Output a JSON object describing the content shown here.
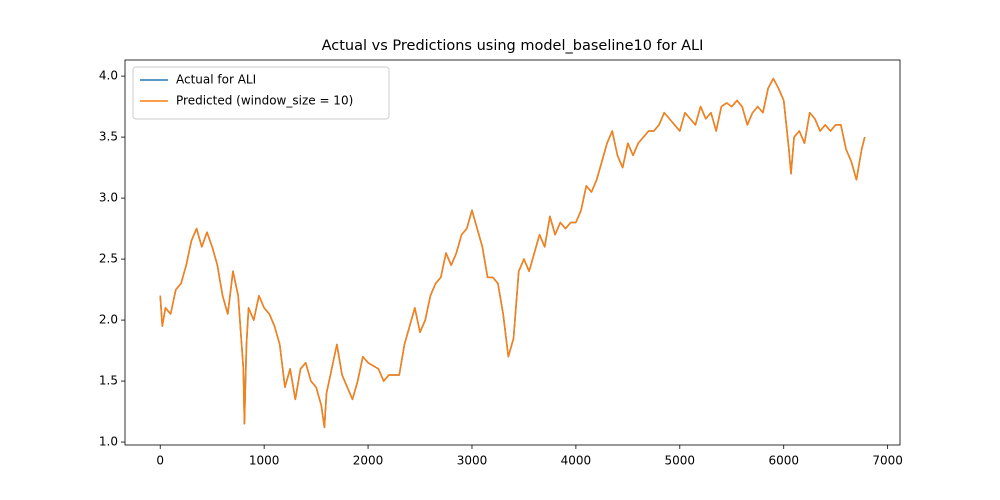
{
  "chart_data": {
    "type": "line",
    "title": "Actual vs Predictions using model_baseline10 for ALI",
    "x": [
      0,
      20,
      50,
      100,
      150,
      200,
      250,
      300,
      350,
      400,
      450,
      500,
      550,
      600,
      650,
      700,
      750,
      800,
      810,
      830,
      850,
      900,
      950,
      1000,
      1050,
      1100,
      1150,
      1200,
      1250,
      1300,
      1350,
      1400,
      1450,
      1500,
      1550,
      1580,
      1600,
      1650,
      1700,
      1750,
      1800,
      1850,
      1900,
      1950,
      2000,
      2100,
      2150,
      2200,
      2300,
      2350,
      2400,
      2450,
      2500,
      2550,
      2600,
      2650,
      2700,
      2750,
      2800,
      2850,
      2900,
      2950,
      3000,
      3050,
      3100,
      3150,
      3200,
      3250,
      3300,
      3350,
      3400,
      3450,
      3500,
      3550,
      3600,
      3650,
      3700,
      3750,
      3800,
      3850,
      3900,
      3950,
      4000,
      4050,
      4100,
      4150,
      4200,
      4250,
      4300,
      4350,
      4400,
      4450,
      4500,
      4550,
      4600,
      4650,
      4700,
      4750,
      4800,
      4850,
      4900,
      4950,
      5000,
      5050,
      5100,
      5150,
      5200,
      5250,
      5300,
      5350,
      5400,
      5450,
      5500,
      5550,
      5600,
      5650,
      5700,
      5750,
      5800,
      5850,
      5900,
      5950,
      6000,
      6050,
      6070,
      6100,
      6150,
      6200,
      6250,
      6300,
      6350,
      6400,
      6450,
      6500,
      6550,
      6600,
      6650,
      6700,
      6750,
      6780
    ],
    "series": [
      {
        "name": "Actual for ALI",
        "color": "#1f77b4",
        "values": [
          2.2,
          1.95,
          2.1,
          2.05,
          2.25,
          2.3,
          2.45,
          2.65,
          2.75,
          2.6,
          2.72,
          2.6,
          2.45,
          2.2,
          2.05,
          2.4,
          2.2,
          1.6,
          1.15,
          1.8,
          2.1,
          2.0,
          2.2,
          2.1,
          2.05,
          1.95,
          1.8,
          1.45,
          1.6,
          1.35,
          1.6,
          1.65,
          1.5,
          1.45,
          1.3,
          1.12,
          1.4,
          1.6,
          1.8,
          1.55,
          1.45,
          1.35,
          1.5,
          1.7,
          1.65,
          1.6,
          1.5,
          1.55,
          1.55,
          1.8,
          1.95,
          2.1,
          1.9,
          2.0,
          2.2,
          2.3,
          2.35,
          2.55,
          2.45,
          2.55,
          2.7,
          2.75,
          2.9,
          2.75,
          2.6,
          2.35,
          2.35,
          2.3,
          2.05,
          1.7,
          1.85,
          2.4,
          2.5,
          2.4,
          2.55,
          2.7,
          2.6,
          2.85,
          2.7,
          2.8,
          2.75,
          2.8,
          2.8,
          2.9,
          3.1,
          3.05,
          3.15,
          3.3,
          3.45,
          3.55,
          3.35,
          3.25,
          3.45,
          3.35,
          3.45,
          3.5,
          3.55,
          3.55,
          3.6,
          3.7,
          3.65,
          3.6,
          3.55,
          3.7,
          3.65,
          3.6,
          3.75,
          3.65,
          3.7,
          3.55,
          3.75,
          3.78,
          3.75,
          3.8,
          3.75,
          3.6,
          3.7,
          3.75,
          3.7,
          3.9,
          3.98,
          3.9,
          3.8,
          3.4,
          3.2,
          3.5,
          3.55,
          3.45,
          3.7,
          3.65,
          3.55,
          3.6,
          3.55,
          3.6,
          3.6,
          3.4,
          3.3,
          3.15,
          3.4,
          3.5
        ]
      },
      {
        "name": "Predicted (window_size = 10)",
        "color": "#ff7f0e",
        "values": [
          2.2,
          1.95,
          2.1,
          2.05,
          2.25,
          2.3,
          2.45,
          2.65,
          2.75,
          2.6,
          2.72,
          2.6,
          2.45,
          2.2,
          2.05,
          2.4,
          2.2,
          1.6,
          1.15,
          1.8,
          2.1,
          2.0,
          2.2,
          2.1,
          2.05,
          1.95,
          1.8,
          1.45,
          1.6,
          1.35,
          1.6,
          1.65,
          1.5,
          1.45,
          1.3,
          1.12,
          1.4,
          1.6,
          1.8,
          1.55,
          1.45,
          1.35,
          1.5,
          1.7,
          1.65,
          1.6,
          1.5,
          1.55,
          1.55,
          1.8,
          1.95,
          2.1,
          1.9,
          2.0,
          2.2,
          2.3,
          2.35,
          2.55,
          2.45,
          2.55,
          2.7,
          2.75,
          2.9,
          2.75,
          2.6,
          2.35,
          2.35,
          2.3,
          2.05,
          1.7,
          1.85,
          2.4,
          2.5,
          2.4,
          2.55,
          2.7,
          2.6,
          2.85,
          2.7,
          2.8,
          2.75,
          2.8,
          2.8,
          2.9,
          3.1,
          3.05,
          3.15,
          3.3,
          3.45,
          3.55,
          3.35,
          3.25,
          3.45,
          3.35,
          3.45,
          3.5,
          3.55,
          3.55,
          3.6,
          3.7,
          3.65,
          3.6,
          3.55,
          3.7,
          3.65,
          3.6,
          3.75,
          3.65,
          3.7,
          3.55,
          3.75,
          3.78,
          3.75,
          3.8,
          3.75,
          3.6,
          3.7,
          3.75,
          3.7,
          3.9,
          3.98,
          3.9,
          3.8,
          3.4,
          3.2,
          3.5,
          3.55,
          3.45,
          3.7,
          3.65,
          3.55,
          3.6,
          3.55,
          3.6,
          3.6,
          3.4,
          3.3,
          3.15,
          3.4,
          3.5
        ]
      }
    ],
    "xlim": [
      -339,
      7119
    ],
    "ylim": [
      0.976,
      4.132
    ],
    "xticks": [
      0,
      1000,
      2000,
      3000,
      4000,
      5000,
      6000,
      7000
    ],
    "yticks": [
      {
        "value": 1,
        "label": "1.0"
      },
      1.5,
      {
        "value": 2,
        "label": "2.0"
      },
      2.5,
      {
        "value": 3,
        "label": "3.0"
      },
      3.5,
      {
        "value": 4,
        "label": "4.0"
      }
    ],
    "legend": "upper left",
    "grid": false
  }
}
